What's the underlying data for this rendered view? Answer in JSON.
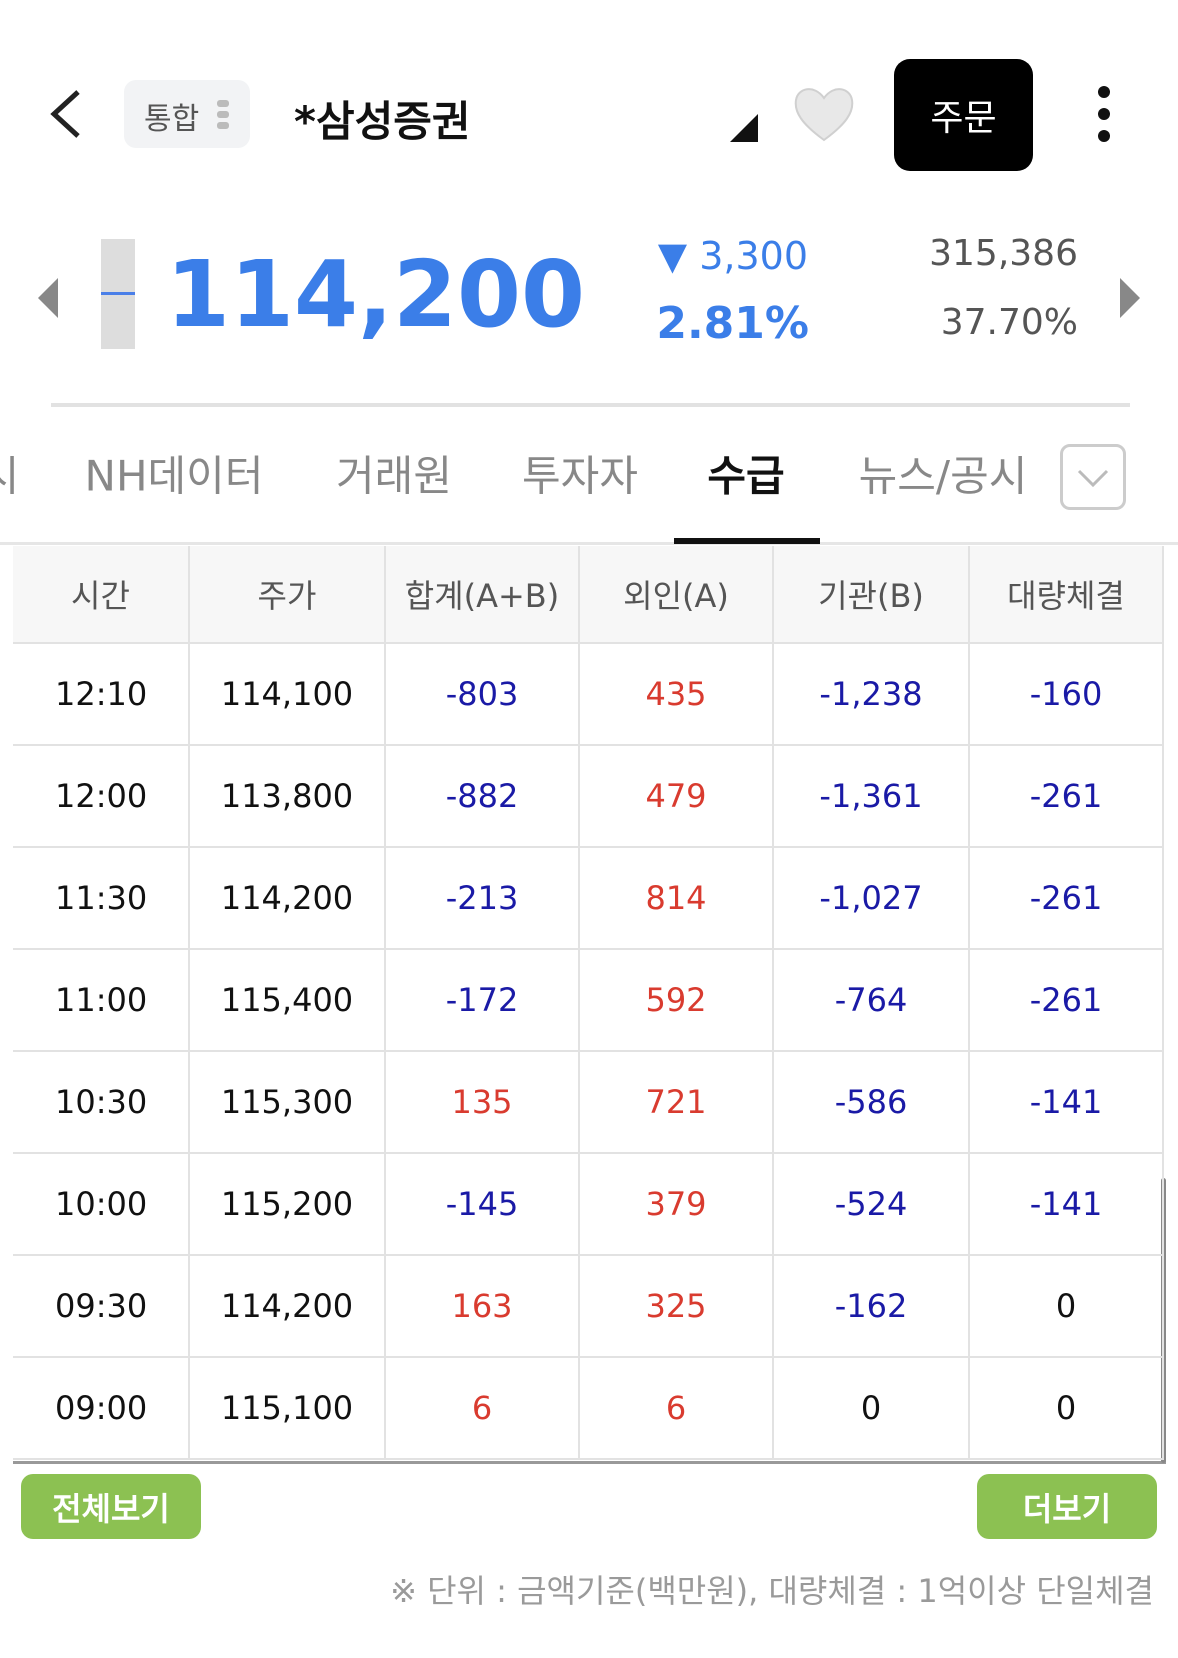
{
  "header": {
    "exchange": "통합",
    "title": "*삼성증권",
    "order_button": "주문"
  },
  "quote": {
    "price": "114,200",
    "change": "▼ 3,300",
    "change_rate": "2.81%",
    "volume": "315,386",
    "volume_rate": "37.70%"
  },
  "tabs": {
    "items": [
      "시",
      "NH데이터",
      "거래원",
      "투자자",
      "수급",
      "뉴스/공시"
    ],
    "active": 4
  },
  "table": {
    "columns": [
      "시간",
      "주가",
      "합계(A+B)",
      "외인(A)",
      "기관(B)",
      "대량체결"
    ],
    "rows": [
      [
        "12:10",
        "114,100",
        "-803",
        "435",
        "-1,238",
        "-160"
      ],
      [
        "12:00",
        "113,800",
        "-882",
        "479",
        "-1,361",
        "-261"
      ],
      [
        "11:30",
        "114,200",
        "-213",
        "814",
        "-1,027",
        "-261"
      ],
      [
        "11:00",
        "115,400",
        "-172",
        "592",
        "-764",
        "-261"
      ],
      [
        "10:30",
        "115,300",
        "135",
        "721",
        "-586",
        "-141"
      ],
      [
        "10:00",
        "115,200",
        "-145",
        "379",
        "-524",
        "-141"
      ],
      [
        "09:30",
        "114,200",
        "163",
        "325",
        "-162",
        "0"
      ],
      [
        "09:00",
        "115,100",
        "6",
        "6",
        "0",
        "0"
      ]
    ]
  },
  "buttons": {
    "view_all": "전체보기",
    "more": "더보기"
  },
  "footnote": "※ 단위 : 금액기준(백만원), 대량체결 : 1억이상 단일체결"
}
